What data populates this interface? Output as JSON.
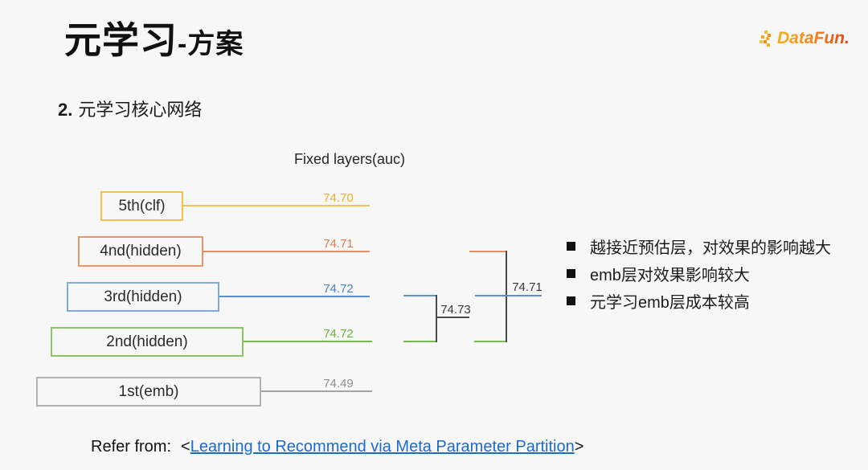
{
  "page": {
    "background_color": "#f7f7f7"
  },
  "header": {
    "title_main": "元学习",
    "title_suffix": "-方案",
    "logo": {
      "text": "DataFun.",
      "gradient_start": "#F7B019",
      "gradient_end": "#E5401E"
    }
  },
  "section": {
    "number": "2.",
    "title": "元学习核心网络"
  },
  "diagram": {
    "axis_title": "Fixed layers(auc)",
    "layers": [
      {
        "name": "5th(clf)",
        "auc": "74.70",
        "color": "#F0C355"
      },
      {
        "name": "4nd(hidden)",
        "auc": "74.71",
        "color": "#E78F66"
      },
      {
        "name": "3rd(hidden)",
        "auc": "74.72",
        "color": "#5C8FCE"
      },
      {
        "name": "2nd(hidden)",
        "auc": "74.72",
        "color": "#77B94E"
      },
      {
        "name": "1st(emb)",
        "auc": "74.49",
        "color": "#A3A3A3"
      }
    ],
    "merge_23_auc": "74.73",
    "merge_234_auc": "74.71",
    "bracket_color": "#4a4a4a"
  },
  "notes": {
    "items": [
      "越接近预估层，对效果的影响越大",
      "emb层对效果影响较大",
      "元学习emb层成本较高"
    ]
  },
  "reference": {
    "prefix": "Refer from:",
    "open_bracket": "<",
    "link_text": "Learning to Recommend via Meta Parameter Partition",
    "close_bracket": ">"
  }
}
